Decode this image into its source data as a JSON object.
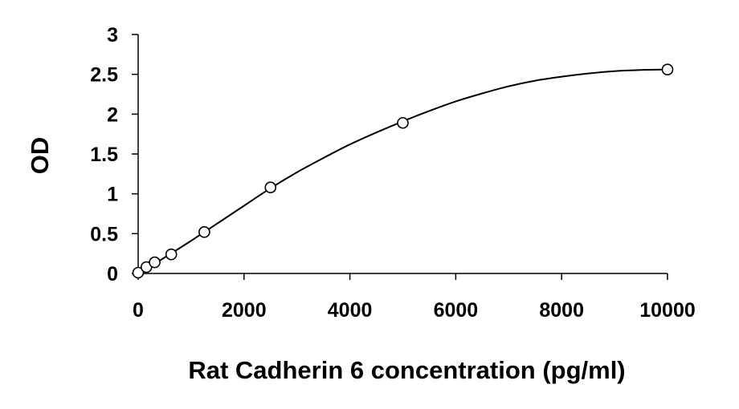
{
  "chart_data": {
    "type": "scatter",
    "title": "",
    "xlabel": "Rat Cadherin 6 concentration (pg/ml)",
    "ylabel": "OD",
    "xlim": [
      0,
      10000
    ],
    "ylim": [
      0,
      3
    ],
    "x_ticks": [
      0,
      2000,
      4000,
      6000,
      8000,
      10000
    ],
    "x_tick_labels": [
      "0",
      "2000",
      "4000",
      "6000",
      "8000",
      "10000"
    ],
    "y_ticks": [
      0,
      0.5,
      1,
      1.5,
      2,
      2.5,
      3
    ],
    "y_tick_labels": [
      "0",
      "0.5",
      "1",
      "1.5",
      "2",
      "2.5",
      "3"
    ],
    "grid": false,
    "legend": "none",
    "series": [
      {
        "marker": "open-circle",
        "x": [
          0,
          156,
          312,
          625,
          1250,
          2500,
          5000,
          10000
        ],
        "y": [
          0.01,
          0.08,
          0.14,
          0.24,
          0.52,
          1.08,
          1.89,
          2.56
        ]
      }
    ],
    "fit": {
      "type": "smooth-curve",
      "x": [
        0,
        250,
        500,
        1000,
        1500,
        2000,
        2500,
        3000,
        3500,
        4000,
        4500,
        5000,
        5500,
        6000,
        6500,
        7000,
        7500,
        8000,
        8500,
        9000,
        9500,
        10000
      ],
      "y": [
        0.0,
        0.1,
        0.2,
        0.41,
        0.63,
        0.85,
        1.07,
        1.27,
        1.45,
        1.62,
        1.77,
        1.91,
        2.04,
        2.16,
        2.26,
        2.35,
        2.42,
        2.47,
        2.51,
        2.54,
        2.555,
        2.56
      ]
    },
    "colors": {
      "marker_stroke": "#000000",
      "marker_fill": "#ffffff",
      "line": "#000000",
      "axis": "#000000"
    }
  }
}
